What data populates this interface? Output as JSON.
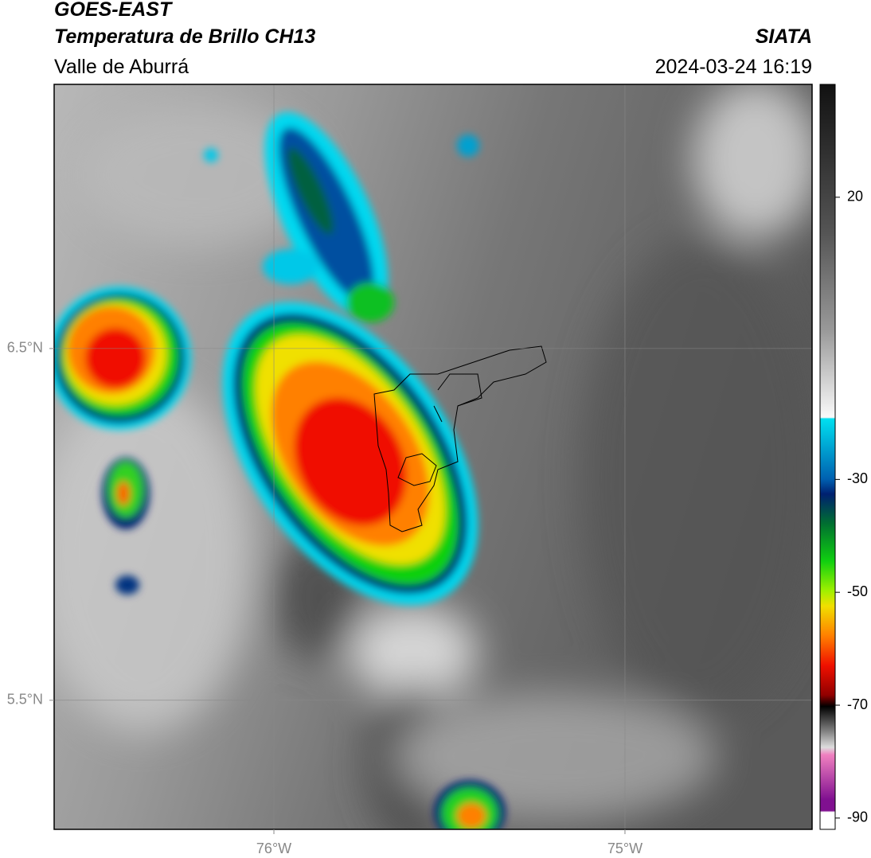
{
  "header": {
    "satellite": "GOES-EAST",
    "product": "Temperatura de Brillo CH13",
    "region": "Valle de Aburrá",
    "source": "SIATA",
    "timestamp": "2024-03-24 16:19"
  },
  "map": {
    "xlim": [
      -76.626,
      -74.467
    ],
    "ylim": [
      5.133,
      7.251
    ],
    "xticks": [
      {
        "value": -76,
        "label": "76°W"
      },
      {
        "value": -75,
        "label": "75°W"
      }
    ],
    "yticks": [
      {
        "value": 6.5,
        "label": "6.5°N"
      },
      {
        "value": 5.5,
        "label": "5.5°N"
      }
    ],
    "grid": true
  },
  "colorbar": {
    "lim": [
      -92,
      40
    ],
    "ticks": [
      20,
      -30,
      -50,
      -70,
      -90
    ]
  }
}
